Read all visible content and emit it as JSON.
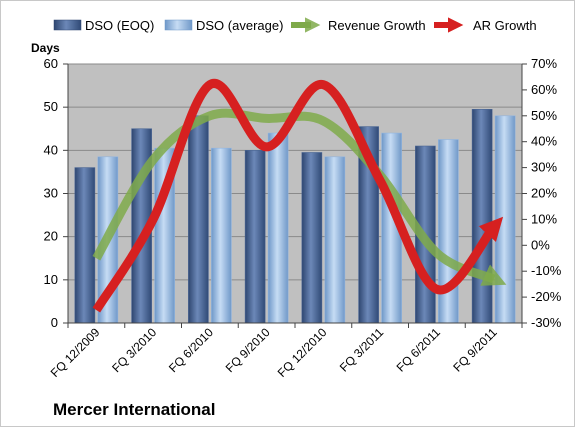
{
  "chart_data": {
    "type": "bar",
    "title": "Mercer International",
    "ylabel_left": "Days",
    "categories": [
      "FQ 12/2009",
      "FQ 3/2010",
      "FQ 6/2010",
      "FQ 9/2010",
      "FQ 12/2010",
      "FQ 3/2011",
      "FQ 6/2011",
      "FQ 9/2011"
    ],
    "left_axis": {
      "ylim": [
        0,
        60
      ],
      "ticks": [
        "0",
        "10",
        "20",
        "30",
        "40",
        "50",
        "60"
      ]
    },
    "right_axis": {
      "ylim": [
        -30,
        70
      ],
      "ticks": [
        "-30%",
        "-20%",
        "-10%",
        "0%",
        "10%",
        "20%",
        "30%",
        "40%",
        "50%",
        "60%",
        "70%"
      ]
    },
    "grid": true,
    "legend_position": "top",
    "series": [
      {
        "name": "DSO (EOQ)",
        "kind": "bar",
        "axis": "left",
        "color": "#4a6694",
        "values": [
          36,
          45,
          48,
          40,
          39.5,
          45.5,
          41,
          49.5
        ]
      },
      {
        "name": "DSO (average)",
        "kind": "bar",
        "axis": "left",
        "color": "#8fb4e0",
        "values": [
          38.5,
          40.5,
          40.5,
          44,
          38.5,
          44,
          42.5,
          48
        ]
      },
      {
        "name": "Revenue Growth",
        "kind": "arrow-line",
        "axis": "right",
        "color": "#7faa4a",
        "values": [
          -5,
          33,
          50,
          49,
          48,
          27,
          -3,
          -13
        ]
      },
      {
        "name": "AR Growth",
        "kind": "arrow-line",
        "axis": "right",
        "color": "#d62020",
        "values": [
          -25,
          10,
          62,
          38,
          62,
          25,
          -17,
          7
        ]
      }
    ]
  }
}
